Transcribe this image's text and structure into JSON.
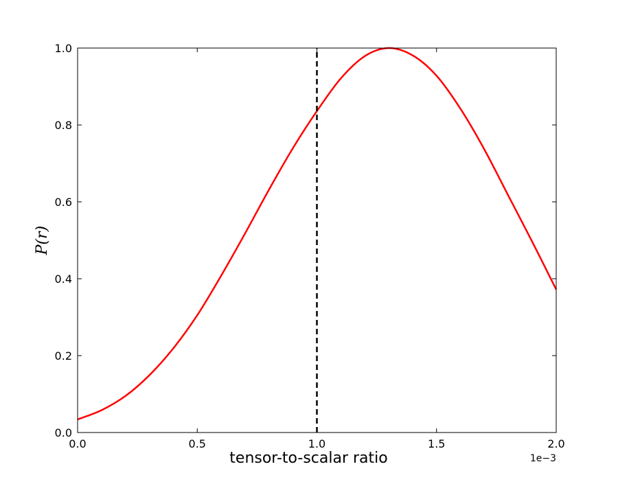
{
  "chart_data": {
    "type": "line",
    "title": "",
    "xlabel": "tensor-to-scalar ratio",
    "ylabel": "P(r)",
    "x_offset_label": "1e−3",
    "xlim": [
      0.0,
      2.0
    ],
    "ylim": [
      0.0,
      1.0
    ],
    "x_ticks": [
      0.0,
      0.5,
      1.0,
      1.5,
      2.0
    ],
    "x_tick_labels": [
      "0.0",
      "0.5",
      "1.0",
      "1.5",
      "2.0"
    ],
    "y_ticks": [
      0.0,
      0.2,
      0.4,
      0.6,
      0.8,
      1.0
    ],
    "y_tick_labels": [
      "0.0",
      "0.2",
      "0.4",
      "0.6",
      "0.8",
      "1.0"
    ],
    "grid": false,
    "series": [
      {
        "color": "#ff0000",
        "style": "solid",
        "x": [
          0.0,
          0.1,
          0.2,
          0.3,
          0.4,
          0.5,
          0.6,
          0.7,
          0.8,
          0.9,
          1.0,
          1.1,
          1.2,
          1.3,
          1.4,
          1.5,
          1.6,
          1.7,
          1.8,
          1.9,
          2.0
        ],
        "y": [
          0.034,
          0.058,
          0.095,
          0.149,
          0.219,
          0.305,
          0.408,
          0.518,
          0.632,
          0.74,
          0.836,
          0.921,
          0.979,
          1.0,
          0.981,
          0.928,
          0.842,
          0.736,
          0.616,
          0.496,
          0.372
        ]
      },
      {
        "color": "#000000",
        "style": "dashed",
        "x": [
          1.0,
          1.0
        ],
        "y": [
          0.0,
          1.0
        ]
      }
    ]
  }
}
